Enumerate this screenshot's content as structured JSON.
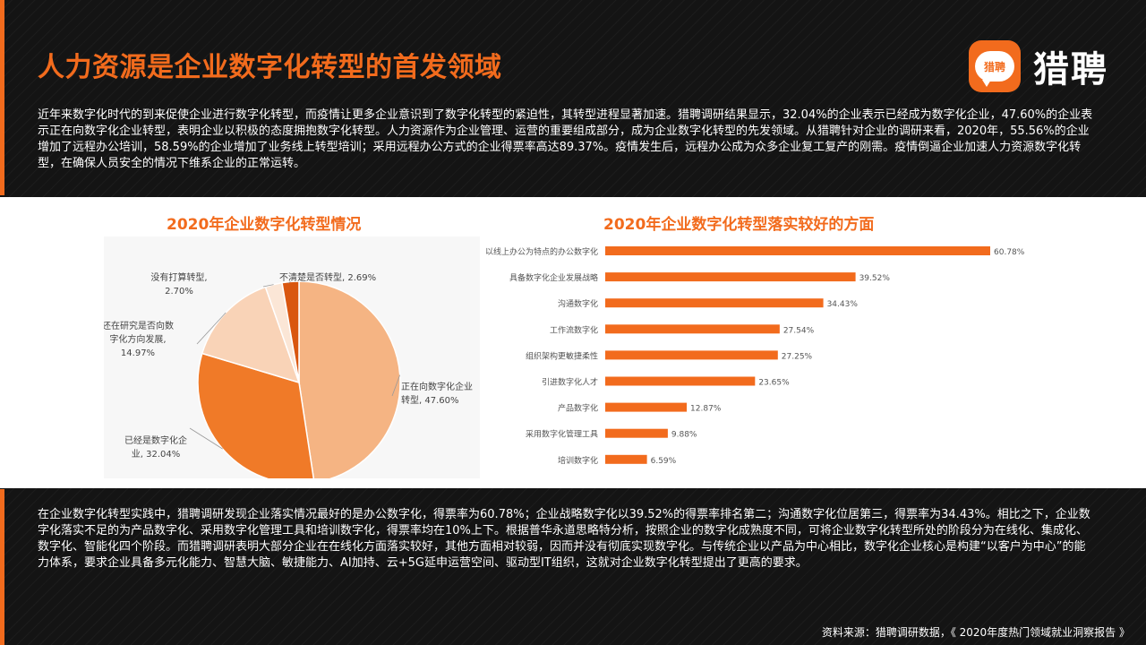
{
  "header": {
    "title": "人力资源是企业数字化转型的首发领域",
    "logo_badge": "猎聘",
    "logo_text": "猎聘"
  },
  "intro_text": "近年来数字化时代的到来促使企业进行数字化转型，而疫情让更多企业意识到了数字化转型的紧迫性，其转型进程显著加速。猎聘调研结果显示，32.04%的企业表示已经成为数字化企业，47.60%的企业表示正在向数字化企业转型，表明企业以积极的态度拥抱数字化转型。人力资源作为企业管理、运营的重要组成部分，成为企业数字化转型的先发领域。从猎聘针对企业的调研来看，2020年，55.56%的企业增加了远程办公培训，58.59%的企业增加了业务线上转型培训；采用远程办公方式的企业得票率高达89.37%。疫情发生后，远程办公成为众多企业复工复产的刚需。疫情倒逼企业加速人力资源数字化转型，在确保人员安全的情况下维系企业的正常运转。",
  "summary_text": "在企业数字化转型实践中，猎聘调研发现企业落实情况最好的是办公数字化，得票率为60.78%；企业战略数字化以39.52%的得票率排名第二；沟通数字化位居第三，得票率为34.43%。相比之下，企业数字化落实不足的为产品数字化、采用数字化管理工具和培训数字化，得票率均在10%上下。根据普华永道思略特分析，按照企业的数字化成熟度不同，可将企业数字化转型所处的阶段分为在线化、集成化、数字化、智能化四个阶段。而猎聘调研表明大部分企业在在线化方面落实较好，其他方面相对较弱，因而并没有彻底实现数字化。与传统企业以产品为中心相比，数字化企业核心是构建“以客户为中心”的能力体系，要求企业具备多元化能力、智慧大脑、敏捷能力、AI加持、云+5G延申运营空间、驱动型IT组织，这就对企业数字化转型提出了更高的要求。",
  "source_text": "资料来源：猎聘调研数据，《 2020年度热门领域就业洞察报告 》",
  "colors": {
    "accent": "#f26b1d",
    "background": "#141414"
  },
  "chart_data": [
    {
      "type": "pie",
      "title": "2020年企业数字化转型情况",
      "slices": [
        {
          "label_lines": [
            "正在向数字化企业",
            "转型, 47.60%"
          ],
          "value": 47.6,
          "color": "#f5b483"
        },
        {
          "label_lines": [
            "已经是数字化企",
            "业, 32.04%"
          ],
          "value": 32.04,
          "color": "#f07a28"
        },
        {
          "label_lines": [
            "还在研究是否向数",
            "字化方向发展,",
            "14.97%"
          ],
          "value": 14.97,
          "color": "#f9d3b7"
        },
        {
          "label_lines": [
            "没有打算转型,",
            "2.70%"
          ],
          "value": 2.7,
          "color": "#fbe6d6"
        },
        {
          "label_lines": [
            "不清楚是否转型, 2.69%"
          ],
          "value": 2.69,
          "color": "#d9560f"
        }
      ]
    },
    {
      "type": "bar",
      "orientation": "horizontal",
      "title": "2020年企业数字化转型落实较好的方面",
      "categories": [
        "以线上办公为特点的办公数字化",
        "具备数字化企业发展战略",
        "沟通数字化",
        "工作流数字化",
        "组织架构更敏捷柔性",
        "引进数字化人才",
        "产品数字化",
        "采用数字化管理工具",
        "培训数字化"
      ],
      "values": [
        60.78,
        39.52,
        34.43,
        27.54,
        27.25,
        23.65,
        12.87,
        9.88,
        6.59
      ],
      "value_labels": [
        "60.78%",
        "39.52%",
        "34.43%",
        "27.54%",
        "27.25%",
        "23.65%",
        "12.87%",
        "9.88%",
        "6.59%"
      ],
      "xlim": [
        0,
        60.78
      ],
      "bar_color": "#f26b1d"
    }
  ]
}
